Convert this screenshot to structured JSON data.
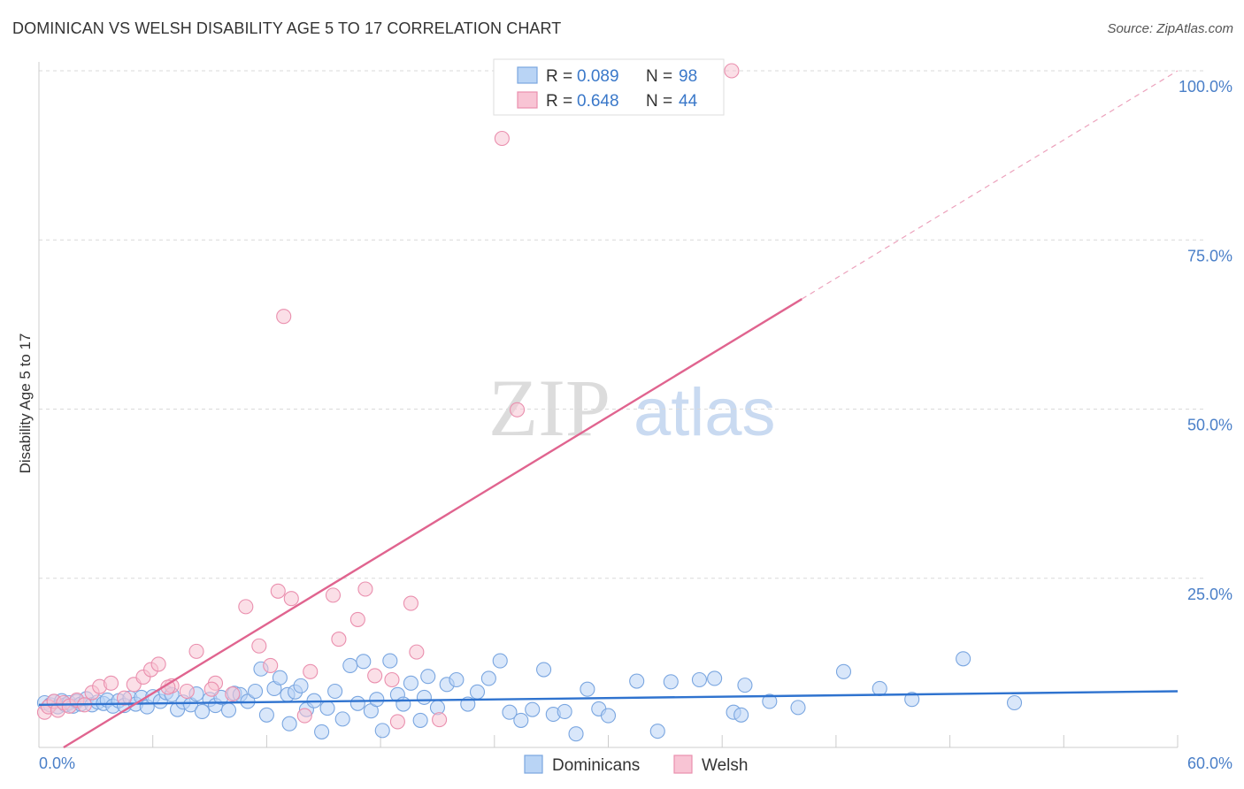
{
  "header": {
    "title": "DOMINICAN VS WELSH DISABILITY AGE 5 TO 17 CORRELATION CHART",
    "source": "Source: ZipAtlas.com"
  },
  "watermark": {
    "zip": "ZIP",
    "atlas": "atlas"
  },
  "colors": {
    "blue_fill": "#b9d4f5",
    "blue_stroke": "#7aa6e0",
    "blue_line": "#2f73cf",
    "pink_fill": "#f8c4d4",
    "pink_stroke": "#ea8fae",
    "pink_line": "#e0648f",
    "tick_text": "#4a7fc8",
    "grid": "#d9d9d9"
  },
  "legend": {
    "r_label": "R = ",
    "n_label": "N = ",
    "rows": [
      {
        "series": "Dominicans",
        "r": "0.089",
        "n": "98"
      },
      {
        "series": "Welsh",
        "r": "0.648",
        "n": "44"
      }
    ]
  },
  "chart_data": {
    "type": "scatter",
    "title": "DOMINICAN VS WELSH DISABILITY AGE 5 TO 17 CORRELATION CHART",
    "xlabel": "",
    "ylabel": "Disability Age 5 to 17",
    "xlim": [
      0,
      60
    ],
    "ylim": [
      0,
      100
    ],
    "x_tick_labels": [
      "0.0%",
      "60.0%"
    ],
    "y_ticks": [
      25,
      50,
      75,
      100
    ],
    "y_tick_labels": [
      "25.0%",
      "50.0%",
      "75.0%",
      "100.0%"
    ],
    "grid": true,
    "legend_position": "bottom-center",
    "series": [
      {
        "name": "Dominicans",
        "color": "#7aa6e0",
        "trend": {
          "x": [
            0,
            60
          ],
          "y": [
            6.3,
            8.3
          ],
          "solid_to": 60
        },
        "points": [
          [
            0.3,
            6.6
          ],
          [
            0.6,
            6.3
          ],
          [
            0.8,
            6.8
          ],
          [
            1.0,
            6.0
          ],
          [
            1.2,
            6.9
          ],
          [
            1.4,
            6.3
          ],
          [
            1.6,
            6.6
          ],
          [
            1.8,
            6.1
          ],
          [
            2.0,
            6.8
          ],
          [
            2.2,
            6.4
          ],
          [
            2.5,
            7.2
          ],
          [
            2.8,
            6.3
          ],
          [
            3.1,
            6.7
          ],
          [
            3.4,
            6.5
          ],
          [
            3.6,
            7.0
          ],
          [
            3.9,
            6.1
          ],
          [
            4.2,
            6.9
          ],
          [
            4.5,
            6.2
          ],
          [
            4.8,
            7.3
          ],
          [
            5.1,
            6.4
          ],
          [
            5.4,
            7.4
          ],
          [
            5.7,
            6.0
          ],
          [
            6.0,
            7.5
          ],
          [
            6.4,
            6.8
          ],
          [
            6.7,
            8.1
          ],
          [
            7.0,
            7.8
          ],
          [
            7.3,
            5.6
          ],
          [
            7.6,
            6.7
          ],
          [
            8.0,
            6.3
          ],
          [
            8.3,
            7.9
          ],
          [
            8.6,
            5.3
          ],
          [
            9.0,
            7.1
          ],
          [
            9.3,
            6.2
          ],
          [
            9.6,
            7.4
          ],
          [
            10.0,
            5.5
          ],
          [
            10.3,
            8.0
          ],
          [
            10.6,
            7.8
          ],
          [
            11.0,
            6.8
          ],
          [
            11.4,
            8.3
          ],
          [
            11.7,
            11.6
          ],
          [
            12.0,
            4.8
          ],
          [
            12.4,
            8.7
          ],
          [
            12.7,
            10.3
          ],
          [
            13.1,
            7.8
          ],
          [
            13.5,
            8.2
          ],
          [
            13.8,
            9.1
          ],
          [
            14.1,
            5.6
          ],
          [
            14.5,
            6.9
          ],
          [
            14.9,
            2.3
          ],
          [
            15.2,
            5.8
          ],
          [
            15.6,
            8.3
          ],
          [
            16.0,
            4.2
          ],
          [
            16.4,
            12.1
          ],
          [
            16.8,
            6.5
          ],
          [
            17.1,
            12.7
          ],
          [
            17.5,
            5.4
          ],
          [
            17.8,
            7.1
          ],
          [
            18.1,
            2.5
          ],
          [
            18.5,
            12.8
          ],
          [
            18.9,
            7.8
          ],
          [
            19.2,
            6.4
          ],
          [
            19.6,
            9.5
          ],
          [
            20.1,
            4.0
          ],
          [
            20.5,
            10.5
          ],
          [
            21.0,
            5.9
          ],
          [
            21.5,
            9.3
          ],
          [
            22.0,
            10.0
          ],
          [
            22.6,
            6.4
          ],
          [
            23.1,
            8.2
          ],
          [
            23.7,
            10.2
          ],
          [
            24.3,
            12.8
          ],
          [
            24.8,
            5.2
          ],
          [
            25.4,
            4.0
          ],
          [
            26.0,
            5.6
          ],
          [
            26.6,
            11.5
          ],
          [
            27.1,
            4.9
          ],
          [
            27.7,
            5.3
          ],
          [
            28.3,
            2.0
          ],
          [
            28.9,
            8.6
          ],
          [
            29.5,
            5.7
          ],
          [
            30.0,
            4.7
          ],
          [
            31.5,
            9.8
          ],
          [
            32.6,
            2.4
          ],
          [
            33.3,
            9.7
          ],
          [
            34.8,
            10.0
          ],
          [
            35.6,
            10.2
          ],
          [
            36.6,
            5.2
          ],
          [
            37.2,
            9.2
          ],
          [
            38.5,
            6.8
          ],
          [
            40.0,
            5.9
          ],
          [
            42.4,
            11.2
          ],
          [
            44.3,
            8.7
          ],
          [
            46.0,
            7.1
          ],
          [
            48.7,
            13.1
          ],
          [
            51.4,
            6.6
          ],
          [
            13.2,
            3.5
          ],
          [
            37.0,
            4.8
          ],
          [
            20.3,
            7.4
          ]
        ]
      },
      {
        "name": "Welsh",
        "color": "#ea8fae",
        "trend": {
          "x": [
            1.3,
            60
          ],
          "y": [
            0.0,
            100.0
          ],
          "solid_to": 40.2
        },
        "points": [
          [
            0.3,
            5.2
          ],
          [
            0.5,
            6.0
          ],
          [
            0.8,
            6.8
          ],
          [
            1.0,
            5.5
          ],
          [
            1.3,
            6.6
          ],
          [
            1.6,
            6.1
          ],
          [
            2.0,
            7.0
          ],
          [
            2.4,
            6.3
          ],
          [
            2.8,
            8.1
          ],
          [
            3.2,
            9.0
          ],
          [
            3.8,
            9.5
          ],
          [
            4.5,
            7.3
          ],
          [
            5.0,
            9.3
          ],
          [
            5.5,
            10.4
          ],
          [
            5.9,
            11.5
          ],
          [
            6.3,
            12.3
          ],
          [
            7.0,
            9.1
          ],
          [
            7.8,
            8.3
          ],
          [
            8.3,
            14.2
          ],
          [
            9.3,
            9.5
          ],
          [
            10.2,
            7.9
          ],
          [
            10.9,
            20.8
          ],
          [
            11.6,
            15.0
          ],
          [
            12.2,
            12.1
          ],
          [
            12.6,
            23.1
          ],
          [
            13.3,
            22.0
          ],
          [
            14.0,
            4.7
          ],
          [
            14.3,
            11.2
          ],
          [
            15.5,
            22.5
          ],
          [
            15.8,
            16.0
          ],
          [
            16.8,
            18.9
          ],
          [
            17.2,
            23.4
          ],
          [
            17.7,
            10.6
          ],
          [
            18.6,
            10.0
          ],
          [
            18.9,
            3.8
          ],
          [
            19.6,
            21.3
          ],
          [
            19.9,
            14.1
          ],
          [
            21.1,
            4.1
          ],
          [
            12.9,
            63.7
          ],
          [
            25.2,
            49.9
          ],
          [
            24.4,
            90.0
          ],
          [
            36.5,
            100.0
          ],
          [
            9.1,
            8.6
          ],
          [
            6.8,
            8.9
          ]
        ]
      }
    ]
  },
  "bottom_legend": [
    "Dominicans",
    "Welsh"
  ]
}
